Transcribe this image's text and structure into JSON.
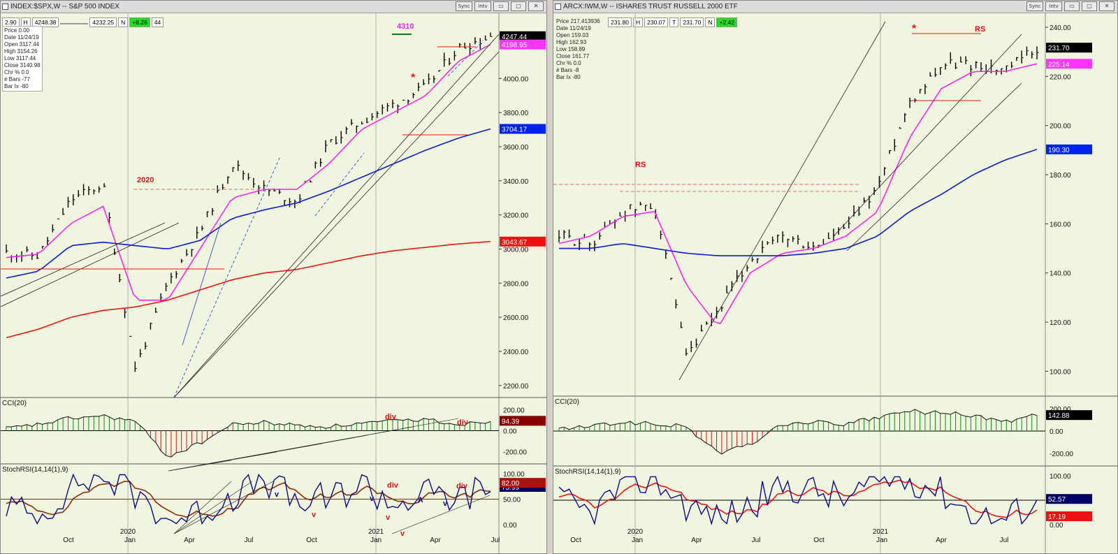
{
  "left": {
    "title": "INDEX:$SPX,W -- S&P 500 INDEX",
    "quote": [
      "2.90",
      "H",
      "4248.38",
      "",
      "4232.25",
      "N",
      "+8.26",
      "44"
    ],
    "info": [
      "Price  0.00",
      "Date  11/24/19",
      "Open  3117.44",
      "High  3154.26",
      "Low  3117.44",
      "Close  3140.98",
      "Chr %  0.0",
      "# Bars -77",
      "Bar Ix -80"
    ],
    "labels": {
      "year": "2020",
      "top": "4310",
      "star": "*",
      "div1": "div",
      "div2": "div",
      "div3": "div",
      "div4": "div"
    },
    "x_ticks": [
      "Oct",
      "Jan",
      "Apr",
      "Jul",
      "Oct",
      "Jan",
      "Apr",
      "Jul"
    ],
    "year_ticks": [
      "2020",
      "2021"
    ],
    "y_ticks": [
      "4000.00",
      "3800.00",
      "3600.00",
      "3400.00",
      "3200.00",
      "3000.00",
      "2800.00",
      "2600.00",
      "2400.00",
      "2200.00"
    ],
    "price_tags": [
      {
        "text": "4247.44",
        "bg": "#000000",
        "fg": "#ffffff"
      },
      {
        "text": "4198.95",
        "bg": "#ff33ff",
        "fg": "#ffffff"
      },
      {
        "text": "3704.17",
        "bg": "#0022ee",
        "fg": "#ffffff"
      },
      {
        "text": "3043.67",
        "bg": "#ee1111",
        "fg": "#ffffff"
      }
    ],
    "cci": {
      "title": "CCI(20)",
      "ticks": [
        "200.00",
        "0.00",
        "-200.00"
      ],
      "tag": "94.39",
      "tag_bg": "#880000"
    },
    "stoch": {
      "title": "StochRSI(14,14(1),9)",
      "ticks": [
        "100.00",
        "50.00",
        "0.00"
      ],
      "tag": "73.99",
      "tag2": "82.00",
      "tag_bg": "#000066"
    },
    "stoch_letters": [
      "v",
      "v",
      "v",
      "v",
      "v",
      "Λ",
      "v"
    ]
  },
  "right": {
    "title": "ARCX:IWM,W -- ISHARES TRUST RUSSELL 2000 ETF",
    "quote": [
      "231.80",
      "H",
      "230.07",
      "T",
      "231.70",
      "N",
      "+2.42"
    ],
    "info": [
      "Price  217.413936",
      "Date  11/24/19",
      "Open  159.03",
      "High  162.93",
      "Low  158.89",
      "Close  161.77",
      "Chr %  0.0",
      "# Bars -8",
      "Bar Ix -80"
    ],
    "labels": {
      "rs1": "RS",
      "rs2": "RS",
      "star": "*"
    },
    "x_ticks": [
      "Oct",
      "Jan",
      "Apr",
      "Jul",
      "Oct",
      "Jan",
      "Apr",
      "Jul"
    ],
    "year_ticks": [
      "2020",
      "2021"
    ],
    "y_ticks": [
      "240.00",
      "220.00",
      "200.00",
      "180.00",
      "160.00",
      "140.00",
      "120.00",
      "100.00"
    ],
    "price_tags": [
      {
        "text": "231.70",
        "bg": "#000000",
        "fg": "#ffffff"
      },
      {
        "text": "225.14",
        "bg": "#ff33ff",
        "fg": "#ffffff"
      },
      {
        "text": "190.30",
        "bg": "#0022ee",
        "fg": "#ffffff"
      }
    ],
    "cci": {
      "title": "CCI(20)",
      "ticks": [
        "200.00",
        "0.00",
        "-200.00"
      ],
      "tag": "142.88",
      "tag_bg": "#000000"
    },
    "stoch": {
      "title": "StochRSI(14,14(1),9)",
      "ticks": [
        "100.00",
        "50.00",
        "0.00"
      ],
      "tag": "52.57",
      "tag2": "17.19",
      "tag_bg": "#000066"
    }
  },
  "window_buttons": {
    "sync": "Sync",
    "intv": "Intv",
    "min": "▭",
    "max": "▢",
    "close": "✕"
  },
  "chart_data": [
    {
      "type": "line",
      "title": "INDEX:$SPX,W -- S&P 500 INDEX",
      "ylim": [
        2150,
        4300
      ],
      "x": [
        "2019-08",
        "2019-10",
        "2020-01",
        "2020-02",
        "2020-03",
        "2020-04",
        "2020-06",
        "2020-08",
        "2020-09",
        "2020-10",
        "2020-11",
        "2021-01",
        "2021-02",
        "2021-03",
        "2021-04",
        "2021-05"
      ],
      "series": [
        {
          "name": "close",
          "values": [
            2980,
            2960,
            3290,
            3380,
            2300,
            2800,
            3100,
            3500,
            3350,
            3280,
            3620,
            3750,
            3850,
            3950,
            4180,
            4247
          ]
        },
        {
          "name": "ma-magenta",
          "values": [
            2950,
            2970,
            3150,
            3250,
            2700,
            2700,
            3000,
            3300,
            3350,
            3350,
            3500,
            3700,
            3800,
            3900,
            4100,
            4199
          ]
        },
        {
          "name": "ma-blue",
          "values": [
            2830,
            2870,
            3020,
            3040,
            3020,
            3000,
            3050,
            3180,
            3230,
            3270,
            3340,
            3420,
            3500,
            3580,
            3650,
            3704
          ]
        },
        {
          "name": "ma-red",
          "values": [
            2480,
            2530,
            2600,
            2640,
            2660,
            2700,
            2760,
            2820,
            2860,
            2880,
            2920,
            2960,
            2990,
            3010,
            3030,
            3044
          ]
        }
      ]
    },
    {
      "type": "line",
      "title": "ARCX:IWM,W -- ISHARES TRUST RUSSELL 2000 ETF",
      "ylim": [
        95,
        240
      ],
      "x": [
        "2019-08",
        "2019-10",
        "2020-01",
        "2020-02",
        "2020-03",
        "2020-04",
        "2020-06",
        "2020-08",
        "2020-09",
        "2020-10",
        "2020-11",
        "2021-01",
        "2021-02",
        "2021-03",
        "2021-04",
        "2021-05"
      ],
      "series": [
        {
          "name": "close",
          "values": [
            155,
            152,
            165,
            168,
            105,
            125,
            145,
            155,
            150,
            158,
            175,
            210,
            225,
            225,
            222,
            231.7
          ]
        },
        {
          "name": "ma-magenta",
          "values": [
            152,
            155,
            163,
            165,
            135,
            118,
            140,
            148,
            150,
            155,
            165,
            195,
            215,
            222,
            222,
            225.14
          ]
        },
        {
          "name": "ma-blue",
          "values": [
            150,
            150,
            152,
            150,
            148,
            147,
            147,
            147,
            148,
            150,
            155,
            165,
            172,
            180,
            186,
            190.3
          ]
        }
      ]
    }
  ]
}
